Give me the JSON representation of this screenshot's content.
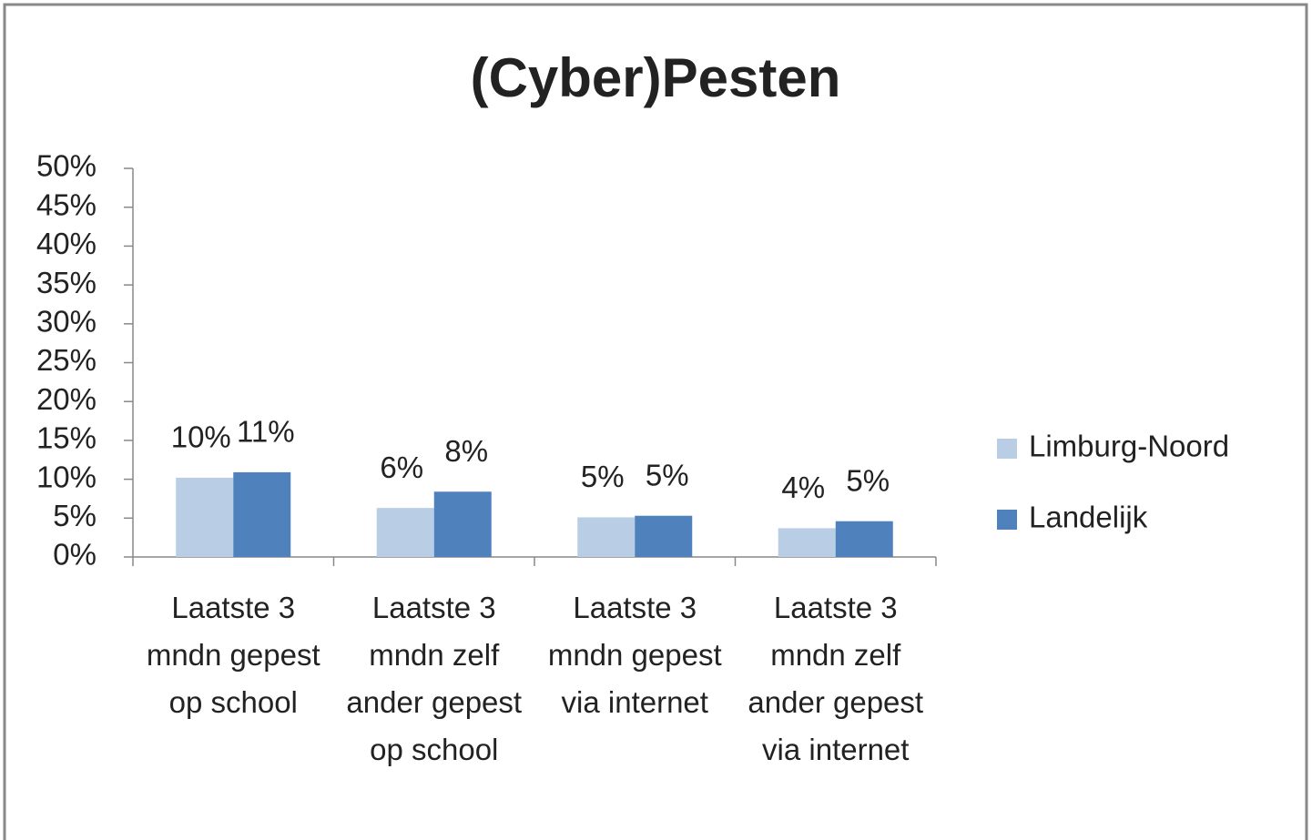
{
  "chart_data": {
    "type": "bar",
    "title": "(Cyber)Pesten",
    "categories": [
      "Laatste 3 mndn gepest op school",
      "Laatste 3 mndn zelf ander gepest op school",
      "Laatste 3 mndn gepest via internet",
      "Laatste 3 mndn zelf ander gepest via internet"
    ],
    "series": [
      {
        "name": "Limburg-Noord",
        "color": "#b9cde5",
        "values": [
          10.2,
          6.3,
          5.1,
          3.7
        ],
        "value_labels": [
          "10%",
          "6%",
          "5%",
          "4%"
        ]
      },
      {
        "name": "Landelijk",
        "color": "#4f81bd",
        "values": [
          10.9,
          8.4,
          5.3,
          4.6
        ],
        "value_labels": [
          "11%",
          "8%",
          "5%",
          "5%"
        ]
      }
    ],
    "ylim": [
      0,
      50
    ],
    "yticks": [
      {
        "value": 0,
        "label": "0%"
      },
      {
        "value": 5,
        "label": "5%"
      },
      {
        "value": 10,
        "label": "10%"
      },
      {
        "value": 15,
        "label": "15%"
      },
      {
        "value": 20,
        "label": "20%"
      },
      {
        "value": 25,
        "label": "25%"
      },
      {
        "value": 30,
        "label": "30%"
      },
      {
        "value": 35,
        "label": "35%"
      },
      {
        "value": 40,
        "label": "40%"
      },
      {
        "value": 45,
        "label": "45%"
      },
      {
        "value": 50,
        "label": "50%"
      }
    ],
    "grid": false,
    "legend": "right"
  }
}
